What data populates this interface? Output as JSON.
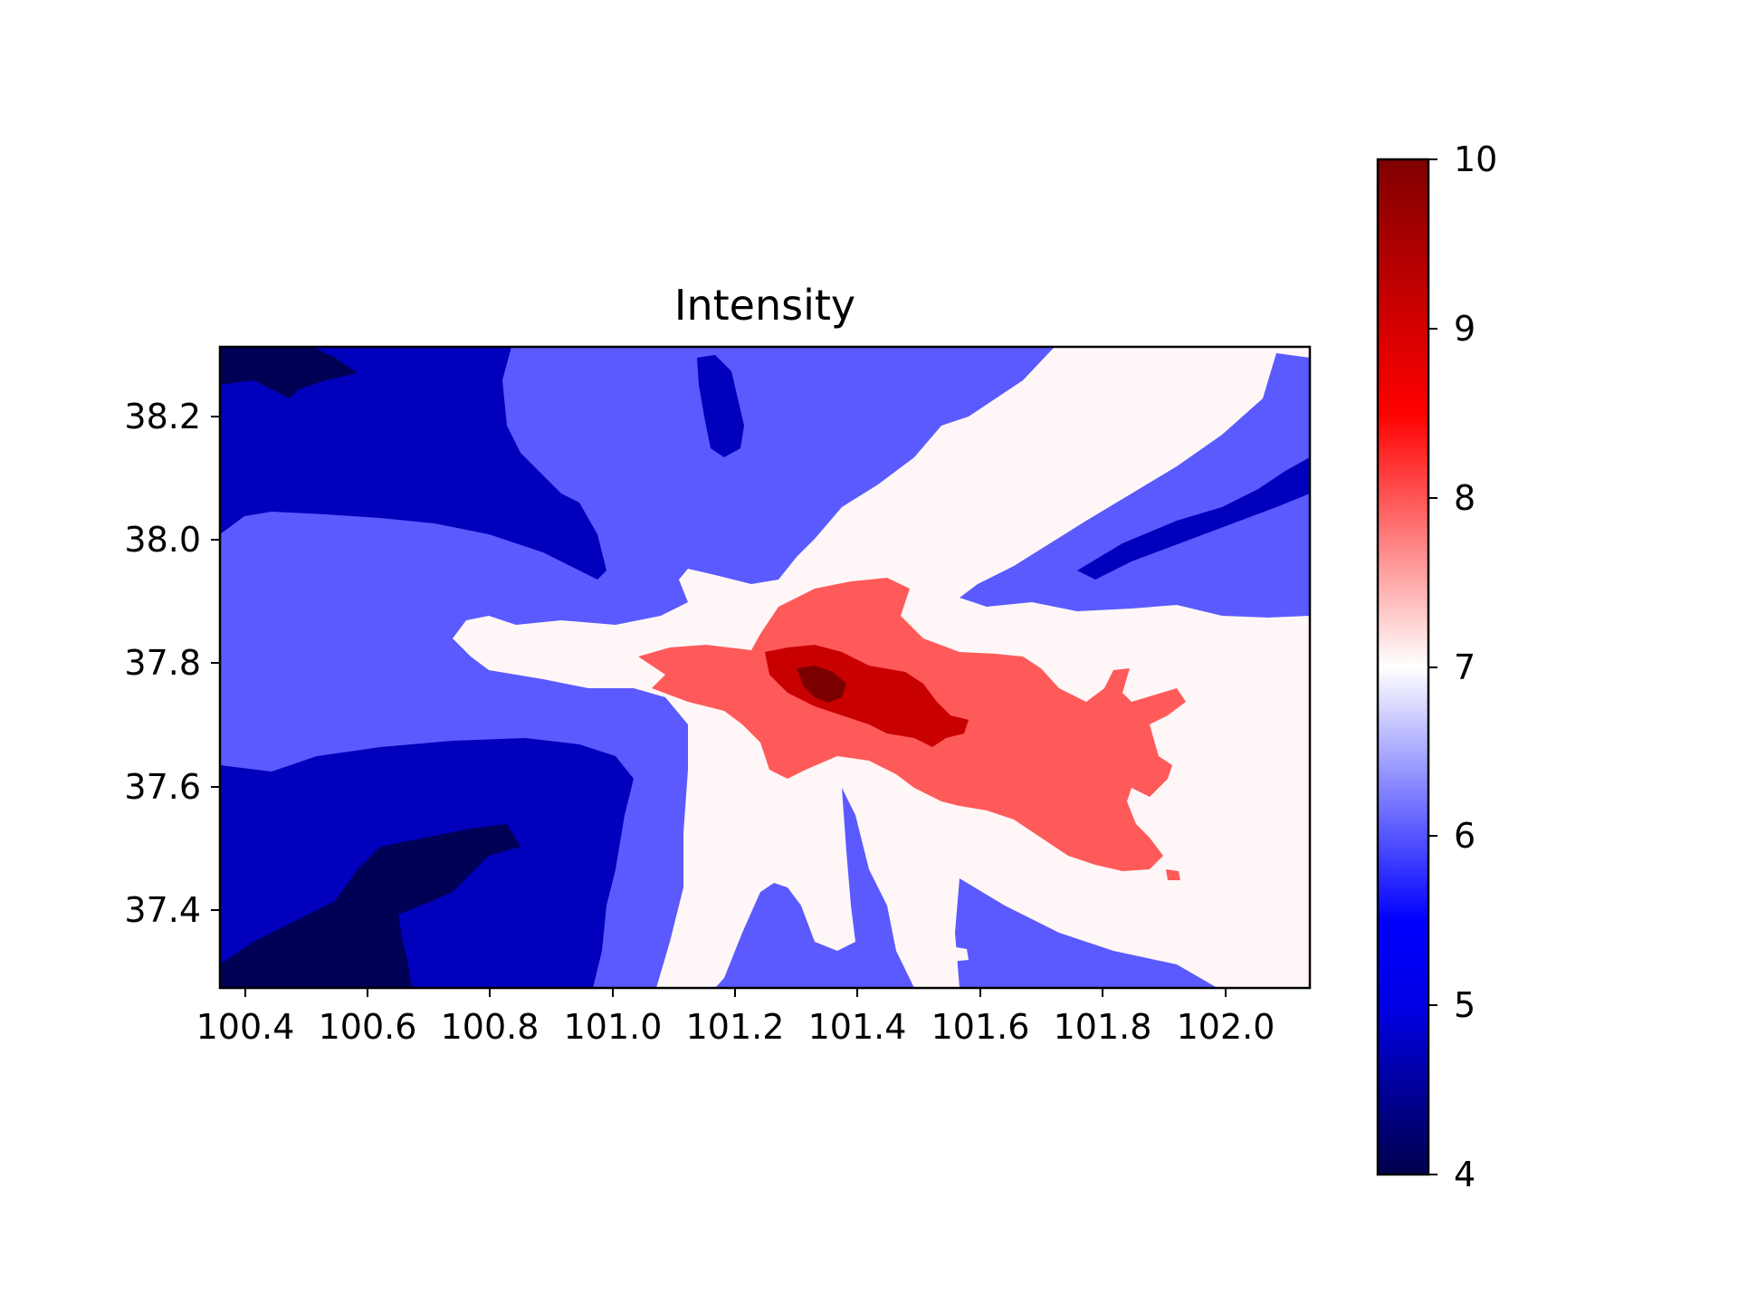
{
  "chart_data": {
    "type": "heatmap",
    "subtype": "filled-contour",
    "title": "Intensity",
    "xlabel": "",
    "ylabel": "",
    "xlim": [
      100.36,
      102.14
    ],
    "ylim": [
      37.27,
      38.31
    ],
    "x_ticks": [
      "100.4",
      "100.6",
      "100.8",
      "101.0",
      "101.2",
      "101.4",
      "101.6",
      "101.8",
      "102.0"
    ],
    "y_ticks": [
      "37.4",
      "37.6",
      "37.8",
      "38.0",
      "38.2"
    ],
    "colorbar": {
      "colormap": "seismic",
      "range": [
        4,
        10
      ],
      "ticks": [
        "4",
        "5",
        "6",
        "7",
        "8",
        "9",
        "10"
      ],
      "stops": [
        {
          "value": 4,
          "color": "#00004c"
        },
        {
          "value": 5,
          "color": "#0000e6"
        },
        {
          "value": 5.5,
          "color": "#0000ff"
        },
        {
          "value": 7,
          "color": "#ffffff"
        },
        {
          "value": 8.5,
          "color": "#ff0000"
        },
        {
          "value": 10,
          "color": "#800000"
        }
      ]
    },
    "levels": [
      {
        "range": [
          4,
          5
        ],
        "color": "#000055"
      },
      {
        "range": [
          5,
          6
        ],
        "color": "#0000bd"
      },
      {
        "range": [
          6,
          7
        ],
        "color": "#5a5aff"
      },
      {
        "range": [
          7,
          8
        ],
        "color": "#fff7f7"
      },
      {
        "range": [
          8,
          9
        ],
        "color": "#ff5a5a"
      },
      {
        "range": [
          9,
          10
        ],
        "color": "#c80000"
      },
      {
        "range": [
          10,
          10.5
        ],
        "color": "#7a0000"
      }
    ],
    "epicenter": {
      "lon": 101.33,
      "lat": 37.76,
      "max_intensity_band": [
        10,
        10.5
      ]
    }
  }
}
